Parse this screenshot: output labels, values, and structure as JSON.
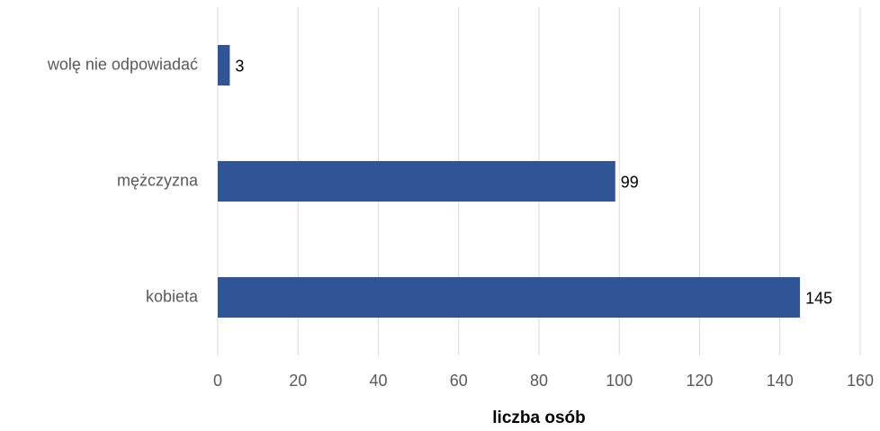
{
  "chart_data": {
    "type": "bar",
    "orientation": "horizontal",
    "categories": [
      "wolę nie odpowiadać",
      "mężczyzna",
      "kobieta"
    ],
    "values": [
      3,
      99,
      145
    ],
    "color": "#2f5597",
    "xlabel": "liczba osób",
    "xlim": [
      0,
      160
    ],
    "xticks": [
      0,
      20,
      40,
      60,
      80,
      100,
      120,
      140,
      160
    ],
    "grid": true
  }
}
